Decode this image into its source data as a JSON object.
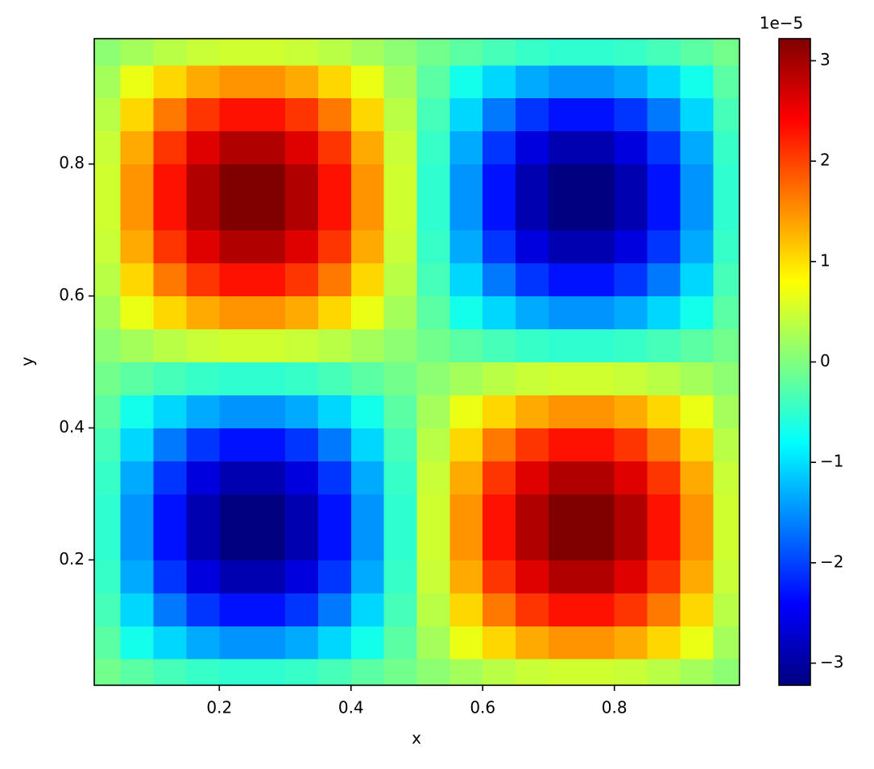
{
  "chart_data": {
    "type": "heatmap",
    "xlabel": "x",
    "ylabel": "y",
    "x": [
      0.025,
      0.075,
      0.125,
      0.175,
      0.225,
      0.275,
      0.325,
      0.375,
      0.425,
      0.475,
      0.525,
      0.575,
      0.625,
      0.675,
      0.725,
      0.775,
      0.825,
      0.875,
      0.925,
      0.975
    ],
    "y": [
      0.025,
      0.075,
      0.125,
      0.175,
      0.225,
      0.275,
      0.325,
      0.375,
      0.425,
      0.475,
      0.525,
      0.575,
      0.625,
      0.675,
      0.725,
      0.775,
      0.825,
      0.875,
      0.925,
      0.975
    ],
    "z": [
      [
        -0.08,
        -0.23,
        -0.36,
        -0.46,
        -0.51,
        -0.51,
        -0.46,
        -0.36,
        -0.23,
        -0.08,
        0.08,
        0.23,
        0.36,
        0.46,
        0.51,
        0.51,
        0.46,
        0.36,
        0.23,
        0.08
      ],
      [
        -0.23,
        -0.68,
        -1.06,
        -1.34,
        -1.48,
        -1.48,
        -1.34,
        -1.06,
        -0.68,
        -0.23,
        0.23,
        0.68,
        1.06,
        1.34,
        1.48,
        1.48,
        1.34,
        1.06,
        0.68,
        0.23
      ],
      [
        -0.36,
        -1.06,
        -1.65,
        -2.08,
        -2.31,
        -2.31,
        -2.08,
        -1.65,
        -1.06,
        -0.36,
        0.36,
        1.06,
        1.65,
        2.08,
        2.31,
        2.31,
        2.08,
        1.65,
        1.06,
        0.36
      ],
      [
        -0.46,
        -1.34,
        -2.08,
        -2.62,
        -2.91,
        -2.91,
        -2.62,
        -2.08,
        -1.34,
        -0.46,
        0.46,
        1.34,
        2.08,
        2.62,
        2.91,
        2.91,
        2.62,
        2.08,
        1.34,
        0.46
      ],
      [
        -0.51,
        -1.48,
        -2.31,
        -2.91,
        -3.22,
        -3.22,
        -2.91,
        -2.31,
        -1.48,
        -0.51,
        0.51,
        1.48,
        2.31,
        2.91,
        3.22,
        3.22,
        2.91,
        2.31,
        1.48,
        0.51
      ],
      [
        -0.51,
        -1.48,
        -2.31,
        -2.91,
        -3.22,
        -3.22,
        -2.91,
        -2.31,
        -1.48,
        -0.51,
        0.51,
        1.48,
        2.31,
        2.91,
        3.22,
        3.22,
        2.91,
        2.31,
        1.48,
        0.51
      ],
      [
        -0.46,
        -1.34,
        -2.08,
        -2.62,
        -2.91,
        -2.91,
        -2.62,
        -2.08,
        -1.34,
        -0.46,
        0.46,
        1.34,
        2.08,
        2.62,
        2.91,
        2.91,
        2.62,
        2.08,
        1.34,
        0.46
      ],
      [
        -0.36,
        -1.06,
        -1.65,
        -2.08,
        -2.31,
        -2.31,
        -2.08,
        -1.65,
        -1.06,
        -0.36,
        0.36,
        1.06,
        1.65,
        2.08,
        2.31,
        2.31,
        2.08,
        1.65,
        1.06,
        0.36
      ],
      [
        -0.23,
        -0.68,
        -1.06,
        -1.34,
        -1.48,
        -1.48,
        -1.34,
        -1.06,
        -0.68,
        -0.23,
        0.23,
        0.68,
        1.06,
        1.34,
        1.48,
        1.48,
        1.34,
        1.06,
        0.68,
        0.23
      ],
      [
        -0.08,
        -0.23,
        -0.36,
        -0.46,
        -0.51,
        -0.51,
        -0.46,
        -0.36,
        -0.23,
        -0.08,
        0.08,
        0.23,
        0.36,
        0.46,
        0.51,
        0.51,
        0.46,
        0.36,
        0.23,
        0.08
      ],
      [
        0.08,
        0.23,
        0.36,
        0.46,
        0.51,
        0.51,
        0.46,
        0.36,
        0.23,
        0.08,
        -0.08,
        -0.23,
        -0.36,
        -0.46,
        -0.51,
        -0.51,
        -0.46,
        -0.36,
        -0.23,
        -0.08
      ],
      [
        0.23,
        0.68,
        1.06,
        1.34,
        1.48,
        1.48,
        1.34,
        1.06,
        0.68,
        0.23,
        -0.23,
        -0.68,
        -1.06,
        -1.34,
        -1.48,
        -1.48,
        -1.34,
        -1.06,
        -0.68,
        -0.23
      ],
      [
        0.36,
        1.06,
        1.65,
        2.08,
        2.31,
        2.31,
        2.08,
        1.65,
        1.06,
        0.36,
        -0.36,
        -1.06,
        -1.65,
        -2.08,
        -2.31,
        -2.31,
        -2.08,
        -1.65,
        -1.06,
        -0.36
      ],
      [
        0.46,
        1.34,
        2.08,
        2.62,
        2.91,
        2.91,
        2.62,
        2.08,
        1.34,
        0.46,
        -0.46,
        -1.34,
        -2.08,
        -2.62,
        -2.91,
        -2.91,
        -2.62,
        -2.08,
        -1.34,
        -0.46
      ],
      [
        0.51,
        1.48,
        2.31,
        2.91,
        3.22,
        3.22,
        2.91,
        2.31,
        1.48,
        0.51,
        -0.51,
        -1.48,
        -2.31,
        -2.91,
        -3.22,
        -3.22,
        -2.91,
        -2.31,
        -1.48,
        -0.51
      ],
      [
        0.51,
        1.48,
        2.31,
        2.91,
        3.22,
        3.22,
        2.91,
        2.31,
        1.48,
        0.51,
        -0.51,
        -1.48,
        -2.31,
        -2.91,
        -3.22,
        -3.22,
        -2.91,
        -2.31,
        -1.48,
        -0.51
      ],
      [
        0.46,
        1.34,
        2.08,
        2.62,
        2.91,
        2.91,
        2.62,
        2.08,
        1.34,
        0.46,
        -0.46,
        -1.34,
        -2.08,
        -2.62,
        -2.91,
        -2.91,
        -2.62,
        -2.08,
        -1.34,
        -0.46
      ],
      [
        0.36,
        1.06,
        1.65,
        2.08,
        2.31,
        2.31,
        2.08,
        1.65,
        1.06,
        0.36,
        -0.36,
        -1.06,
        -1.65,
        -2.08,
        -2.31,
        -2.31,
        -2.08,
        -1.65,
        -1.06,
        -0.36
      ],
      [
        0.23,
        0.68,
        1.06,
        1.34,
        1.48,
        1.48,
        1.34,
        1.06,
        0.68,
        0.23,
        -0.23,
        -0.68,
        -1.06,
        -1.34,
        -1.48,
        -1.48,
        -1.34,
        -1.06,
        -0.68,
        -0.23
      ],
      [
        0.08,
        0.23,
        0.36,
        0.46,
        0.51,
        0.51,
        0.46,
        0.36,
        0.23,
        0.08,
        -0.08,
        -0.23,
        -0.36,
        -0.46,
        -0.51,
        -0.51,
        -0.46,
        -0.36,
        -0.23,
        -0.08
      ]
    ],
    "colormap": "jet",
    "zlim": [
      -3.22,
      3.22
    ],
    "xlim": [
      0.01,
      0.99
    ],
    "ylim": [
      0.01,
      0.99
    ],
    "xticks": [
      0.2,
      0.4,
      0.6,
      0.8
    ],
    "yticks": [
      0.2,
      0.4,
      0.6,
      0.8
    ],
    "colorbar_ticks": [
      {
        "value": -3,
        "label": "−3"
      },
      {
        "value": -2,
        "label": "−2"
      },
      {
        "value": -1,
        "label": "−1"
      },
      0,
      1,
      2,
      3
    ],
    "colorbar_offset": "1e−5"
  }
}
